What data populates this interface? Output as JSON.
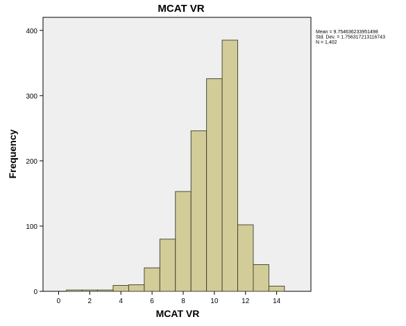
{
  "chart_data": {
    "type": "bar",
    "title": "MCAT VR",
    "xlabel": "MCAT VR",
    "ylabel": "Frequency",
    "x_ticks": [
      0,
      2,
      4,
      6,
      8,
      10,
      12,
      14
    ],
    "y_ticks": [
      0,
      100,
      200,
      300,
      400
    ],
    "xlim": [
      -1.0,
      16.2
    ],
    "ylim": [
      0,
      420
    ],
    "bin_width": 1,
    "bins": [
      {
        "x": 1,
        "value": 2
      },
      {
        "x": 2,
        "value": 2
      },
      {
        "x": 3,
        "value": 2
      },
      {
        "x": 4,
        "value": 9
      },
      {
        "x": 5,
        "value": 10
      },
      {
        "x": 6,
        "value": 36
      },
      {
        "x": 7,
        "value": 80
      },
      {
        "x": 8,
        "value": 153
      },
      {
        "x": 9,
        "value": 246
      },
      {
        "x": 10,
        "value": 326
      },
      {
        "x": 11,
        "value": 385
      },
      {
        "x": 12,
        "value": 102
      },
      {
        "x": 13,
        "value": 41
      },
      {
        "x": 14,
        "value": 8
      }
    ],
    "stats": [
      "Mean = 9.754636233951498",
      "Std. Dev. = 1.756317213116743",
      "N = 1,402"
    ],
    "grid": false,
    "colors": {
      "bar_fill": "#d2cd98",
      "bar_stroke": "#3a3a2a",
      "plot_bg": "#efefef",
      "axis": "#000000"
    }
  }
}
